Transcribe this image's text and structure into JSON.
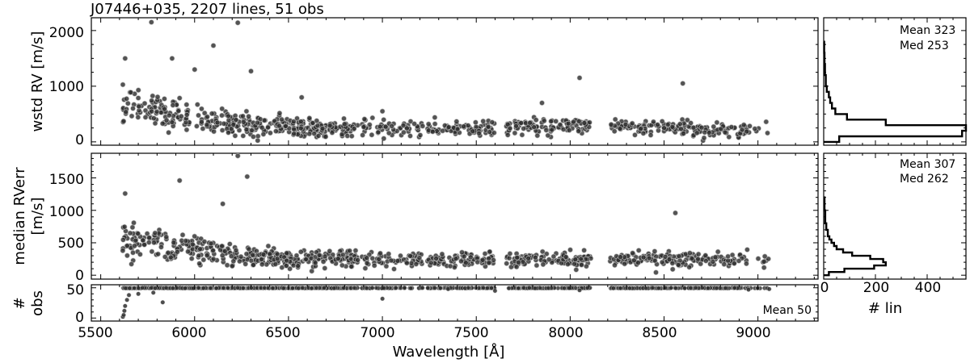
{
  "title": "J07446+035, 2207 lines, 51 obs",
  "xlabel": "Wavelength [Å]",
  "colors": {
    "points_fill": "#2e2e2e",
    "points_edge": "#bdbdbd",
    "frame": "#000000"
  },
  "panels": [
    {
      "id": "rv",
      "ylabel_lines": [
        "wstd RV [m/s]"
      ],
      "yticks": [
        "0",
        "1000",
        "2000"
      ],
      "hist_stats": [
        "Mean 323",
        "Med 253"
      ]
    },
    {
      "id": "err",
      "ylabel_lines": [
        "median RVerr",
        "[m/s]"
      ],
      "yticks": [
        "0",
        "500",
        "1000",
        "1500"
      ],
      "hist_stats": [
        "Mean 307",
        "Med 262"
      ]
    },
    {
      "id": "nobs",
      "ylabel_lines": [
        "#",
        "obs"
      ],
      "yticks": [
        "0",
        "50"
      ],
      "stat": "Mean 50"
    }
  ],
  "xticks": [
    "5500",
    "6000",
    "6500",
    "7000",
    "7500",
    "8000",
    "8500",
    "9000"
  ],
  "hist_xticks": [
    "0",
    "200",
    "400"
  ],
  "hist_xlabel": "# lin",
  "chart_data": {
    "type": "scatter",
    "xlim": [
      5450,
      9320
    ],
    "segments": [
      [
        5615,
        6330
      ],
      [
        6330,
        6870
      ],
      [
        6890,
        7220
      ],
      [
        7240,
        7600
      ],
      [
        7660,
        8110
      ],
      [
        8210,
        8940
      ],
      [
        8940,
        9060
      ]
    ],
    "series": [
      {
        "ylim": [
          -60,
          2230
        ],
        "outliers_x": [
          5770,
          5880,
          6100,
          6230,
          6000,
          5630,
          6300,
          8050,
          7850,
          8600,
          7000,
          6570
        ],
        "outliers_y": [
          2150,
          1500,
          1730,
          2140,
          1300,
          1500,
          1270,
          1150,
          700,
          1050,
          550,
          800
        ],
        "band_centers": [
          [
            5615,
            650
          ],
          [
            6330,
            270
          ],
          [
            6870,
            250
          ],
          [
            7220,
            230
          ],
          [
            8110,
            300
          ],
          [
            8940,
            180
          ],
          [
            9060,
            220
          ]
        ],
        "band_widths": [
          [
            5615,
            180
          ],
          [
            6330,
            80
          ],
          [
            6870,
            70
          ],
          [
            9060,
            60
          ]
        ]
      },
      {
        "ylim": [
          -60,
          1880
        ],
        "outliers_x": [
          6230,
          6280,
          5920,
          5630,
          8560,
          6150
        ],
        "outliers_y": [
          1840,
          1520,
          1460,
          1260,
          960,
          1100
        ],
        "band_centers": [
          [
            5615,
            550
          ],
          [
            6330,
            270
          ],
          [
            6870,
            250
          ],
          [
            7220,
            230
          ],
          [
            8110,
            250
          ],
          [
            8940,
            230
          ],
          [
            9060,
            230
          ]
        ],
        "band_widths": [
          [
            5615,
            150
          ],
          [
            6330,
            80
          ],
          [
            6870,
            60
          ],
          [
            9060,
            50
          ]
        ]
      },
      {
        "ylim": [
          -5,
          55
        ],
        "constant_value": 50,
        "lowval_x": [
          5618,
          5622,
          5626,
          5630,
          5640,
          5650,
          5700,
          5780,
          5830,
          7000,
          7350,
          7600,
          8050,
          8950,
          9060
        ],
        "lowval_y": [
          2,
          5,
          12,
          20,
          30,
          38,
          40,
          42,
          26,
          32,
          48,
          45,
          46,
          47,
          48
        ]
      }
    ],
    "histograms": [
      {
        "bin_edges": [
          0,
          100,
          200,
          300,
          400,
          500,
          600,
          700,
          800,
          900,
          1000,
          1200,
          1400,
          1600,
          1800
        ],
        "counts": [
          60,
          535,
          555,
          240,
          90,
          45,
          32,
          25,
          20,
          12,
          8,
          5,
          3,
          2
        ],
        "xlim": [
          0,
          550
        ]
      },
      {
        "bin_edges": [
          0,
          50,
          100,
          150,
          200,
          250,
          300,
          350,
          400,
          450,
          500,
          550,
          600,
          700,
          800,
          1000,
          1200
        ],
        "counts": [
          20,
          80,
          195,
          240,
          230,
          180,
          110,
          75,
          50,
          40,
          30,
          22,
          16,
          10,
          6,
          3
        ],
        "xlim": [
          0,
          550
        ]
      }
    ]
  }
}
